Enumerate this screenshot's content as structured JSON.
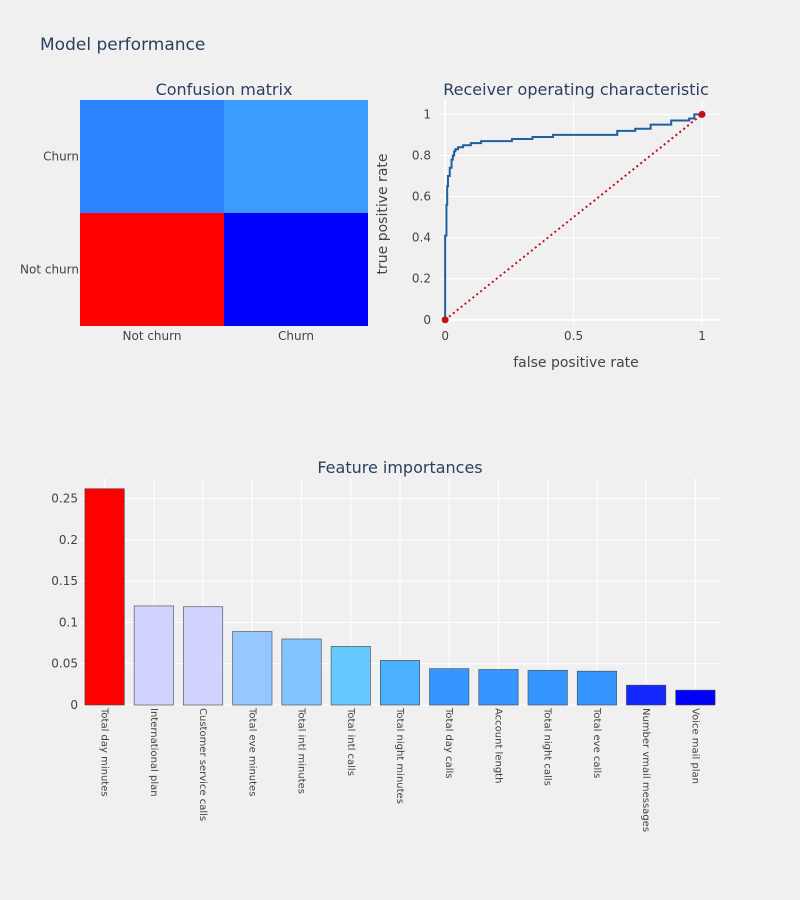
{
  "title": "Model performance",
  "colors": {
    "background": "#f0f0f0",
    "roc_line": "#1f5fa0",
    "diagonal": "#c0101c",
    "grid": "#ffffff"
  },
  "chart_data": [
    {
      "type": "heatmap",
      "title": "Confusion matrix",
      "x_categories": [
        "Not churn",
        "Churn"
      ],
      "y_categories": [
        "Not churn",
        "Churn"
      ],
      "cells": [
        {
          "row": "Churn",
          "col": "Not churn",
          "color": "#2d82ff"
        },
        {
          "row": "Churn",
          "col": "Churn",
          "color": "#3b9bff"
        },
        {
          "row": "Not churn",
          "col": "Not churn",
          "color": "#ff0000"
        },
        {
          "row": "Not churn",
          "col": "Churn",
          "color": "#0000ff"
        }
      ]
    },
    {
      "type": "line",
      "title": "Receiver operating characteristic",
      "xlabel": "false positive rate",
      "ylabel": "true positive rate",
      "xlim": [
        -0.02,
        1.07
      ],
      "ylim": [
        -0.03,
        1.07
      ],
      "xticks": [
        0,
        0.5,
        1
      ],
      "yticks": [
        0,
        0.2,
        0.4,
        0.6,
        0.8,
        1
      ],
      "series": [
        {
          "style": "step",
          "x": [
            0,
            0,
            0.005,
            0.005,
            0.008,
            0.008,
            0.011,
            0.011,
            0.018,
            0.018,
            0.025,
            0.025,
            0.03,
            0.03,
            0.035,
            0.035,
            0.04,
            0.04,
            0.05,
            0.05,
            0.07,
            0.07,
            0.1,
            0.1,
            0.14,
            0.14,
            0.26,
            0.26,
            0.34,
            0.34,
            0.42,
            0.42,
            0.67,
            0.67,
            0.74,
            0.74,
            0.8,
            0.8,
            0.88,
            0.88,
            0.95,
            0.95,
            0.97,
            0.97,
            1.0
          ],
          "y": [
            0,
            0.41,
            0.41,
            0.56,
            0.56,
            0.65,
            0.65,
            0.7,
            0.7,
            0.74,
            0.74,
            0.78,
            0.78,
            0.8,
            0.8,
            0.82,
            0.82,
            0.83,
            0.83,
            0.84,
            0.84,
            0.85,
            0.85,
            0.86,
            0.86,
            0.87,
            0.87,
            0.88,
            0.88,
            0.89,
            0.89,
            0.9,
            0.9,
            0.92,
            0.92,
            0.93,
            0.93,
            0.95,
            0.95,
            0.97,
            0.97,
            0.98,
            0.98,
            1.0,
            1.0
          ]
        },
        {
          "style": "dotted",
          "x": [
            0,
            1
          ],
          "y": [
            0,
            1
          ]
        }
      ]
    },
    {
      "type": "bar",
      "title": "Feature importances",
      "ylim": [
        0,
        0.275
      ],
      "yticks": [
        0,
        0.05,
        0.1,
        0.15,
        0.2,
        0.25
      ],
      "ytick_labels": [
        "0",
        "0.05",
        "0.1",
        "0.15",
        "0.2",
        "0.25"
      ],
      "categories": [
        "Total day minutes",
        "International plan",
        "Customer service calls",
        "Total eve minutes",
        "Total intl minutes",
        "Total intl calls",
        "Total night minutes",
        "Total day calls",
        "Account length",
        "Total night calls",
        "Total eve calls",
        "Number vmail messages",
        "Voice mail plan"
      ],
      "values": [
        0.262,
        0.12,
        0.119,
        0.089,
        0.08,
        0.071,
        0.054,
        0.044,
        0.043,
        0.042,
        0.041,
        0.024,
        0.018
      ],
      "colors": [
        "#ff0000",
        "#d3d3ff",
        "#d3d3ff",
        "#96c8ff",
        "#80c5ff",
        "#66c8ff",
        "#4bb0ff",
        "#3596ff",
        "#3596ff",
        "#3596ff",
        "#3596ff",
        "#1228ff",
        "#0000ff"
      ]
    }
  ]
}
